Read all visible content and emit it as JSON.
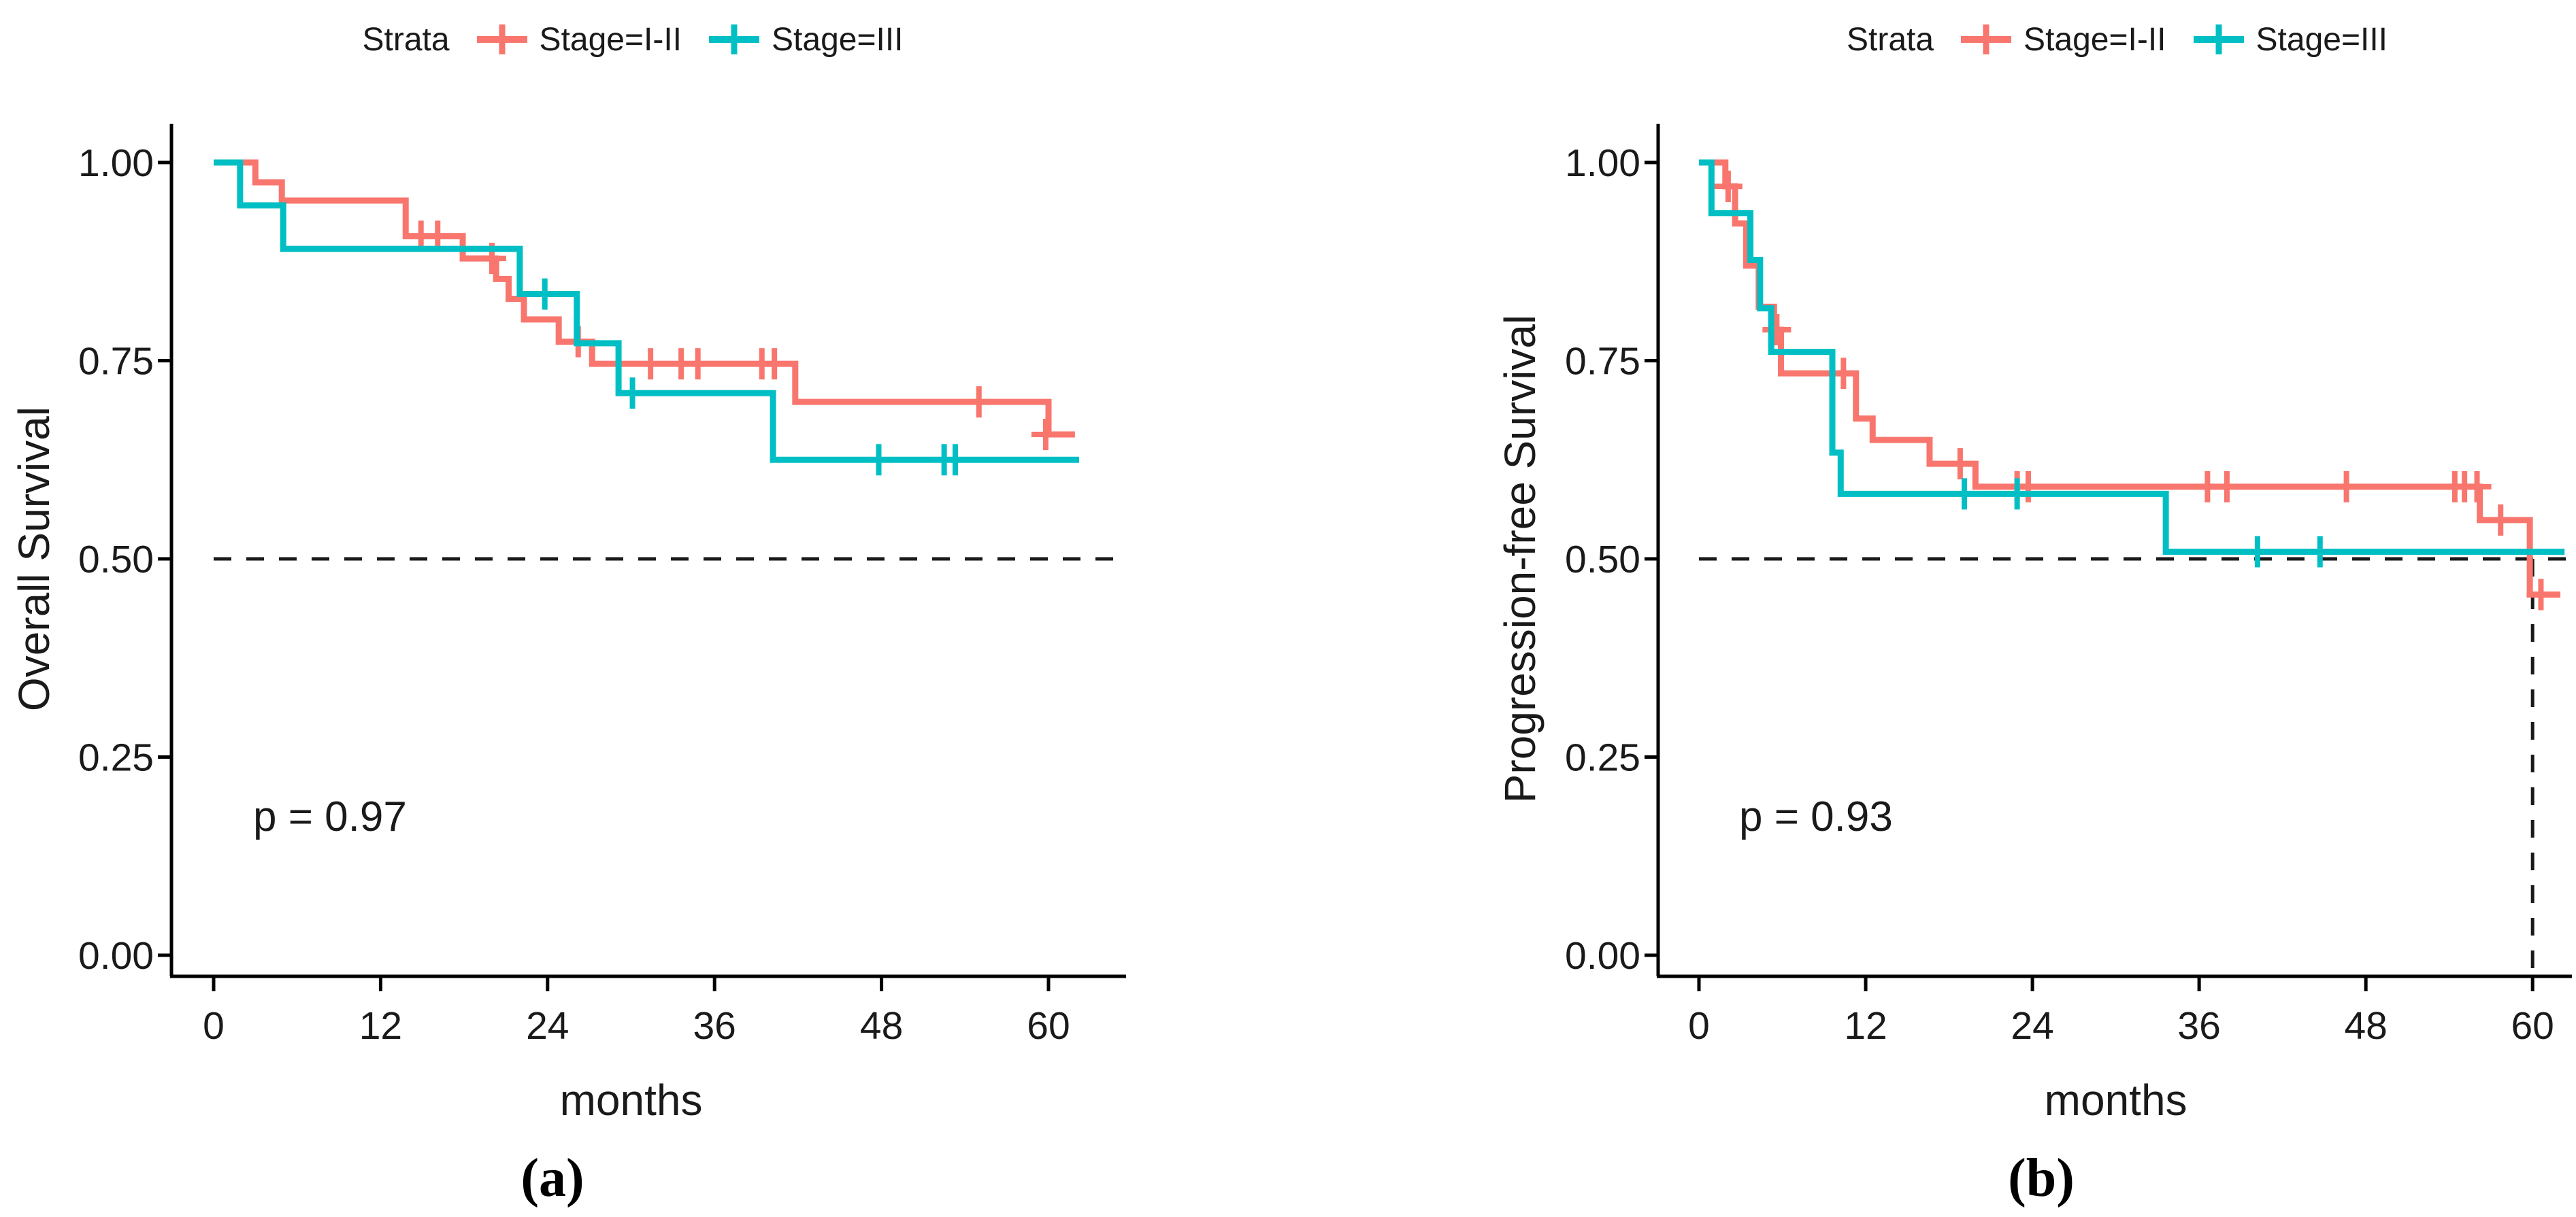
{
  "figure": {
    "background": "#ffffff",
    "legend_title": "Strata",
    "series": [
      {
        "name": "Stage=I-II",
        "color": "#F8766D"
      },
      {
        "name": "Stage=III",
        "color": "#00BFC4"
      }
    ],
    "dashed_color": "#1a1a1a",
    "axis_color": "#000000",
    "text_color": "#1a1a1a"
  },
  "chart_data": [
    {
      "type": "line",
      "subtype": "kaplan-meier-step",
      "panel": "a",
      "caption": "(a)",
      "xlabel": "months",
      "ylabel": "Overall Survival",
      "pvalue": "p = 0.97",
      "xlim": [
        0,
        63.5
      ],
      "ylim": [
        0,
        1.0
      ],
      "xticks": [
        0,
        12,
        24,
        36,
        48,
        60
      ],
      "ytick_labels": [
        "1.00",
        "0.75",
        "0.50",
        "0.25",
        "0.00"
      ],
      "yticks": [
        1.0,
        0.75,
        0.5,
        0.25,
        0.0
      ],
      "grid": false,
      "legend_position": "top",
      "median_line": {
        "horizontal_y": 0.5,
        "vertical_x": null
      },
      "series": [
        {
          "name": "Stage=I-II",
          "color": "#F8766D",
          "end_x": 61.9,
          "steps": [
            [
              0,
              1.0
            ],
            [
              3.0,
              0.975
            ],
            [
              4.9,
              0.952
            ],
            [
              13.8,
              0.907
            ],
            [
              17.9,
              0.879
            ],
            [
              20.3,
              0.853
            ],
            [
              21.2,
              0.828
            ],
            [
              22.3,
              0.802
            ],
            [
              24.8,
              0.774
            ],
            [
              27.2,
              0.746
            ],
            [
              41.8,
              0.698
            ],
            [
              60.0,
              0.657
            ]
          ],
          "censors": [
            [
              14.9,
              0.907
            ],
            [
              16.1,
              0.907
            ],
            [
              20.0,
              0.879
            ],
            [
              26.2,
              0.774
            ],
            [
              31.4,
              0.746
            ],
            [
              33.6,
              0.746
            ],
            [
              34.8,
              0.746
            ],
            [
              39.4,
              0.746
            ],
            [
              40.3,
              0.746
            ],
            [
              55.0,
              0.698
            ],
            [
              59.8,
              0.657
            ]
          ]
        },
        {
          "name": "Stage=III",
          "color": "#00BFC4",
          "end_x": 62.2,
          "steps": [
            [
              0,
              1.0
            ],
            [
              1.9,
              0.946
            ],
            [
              5.0,
              0.891
            ],
            [
              22.0,
              0.834
            ],
            [
              26.1,
              0.772
            ],
            [
              29.1,
              0.709
            ],
            [
              40.2,
              0.625
            ]
          ],
          "censors": [
            [
              23.8,
              0.834
            ],
            [
              30.1,
              0.709
            ],
            [
              47.8,
              0.625
            ],
            [
              52.5,
              0.625
            ],
            [
              53.3,
              0.625
            ]
          ]
        }
      ]
    },
    {
      "type": "line",
      "subtype": "kaplan-meier-step",
      "panel": "b",
      "caption": "(b)",
      "xlabel": "months",
      "ylabel": "Progression-free Survival",
      "pvalue": "p = 0.93",
      "xlim": [
        0,
        63.5
      ],
      "ylim": [
        0,
        1.0
      ],
      "xticks": [
        0,
        12,
        24,
        36,
        48,
        60
      ],
      "ytick_labels": [
        "1.00",
        "0.75",
        "0.50",
        "0.25",
        "0.00"
      ],
      "yticks": [
        1.0,
        0.75,
        0.5,
        0.25,
        0.0
      ],
      "grid": false,
      "legend_position": "top",
      "median_line": {
        "horizontal_y": 0.5,
        "vertical_x": 60
      },
      "series": [
        {
          "name": "Stage=I-II",
          "color": "#F8766D",
          "end_x": 62.0,
          "steps": [
            [
              0,
              1.0
            ],
            [
              1.9,
              0.97
            ],
            [
              2.6,
              0.923
            ],
            [
              3.4,
              0.87
            ],
            [
              4.3,
              0.818
            ],
            [
              5.4,
              0.789
            ],
            [
              5.9,
              0.734
            ],
            [
              11.3,
              0.677
            ],
            [
              12.5,
              0.65
            ],
            [
              16.6,
              0.62
            ],
            [
              19.9,
              0.591
            ],
            [
              56.2,
              0.549
            ],
            [
              59.8,
              0.455
            ]
          ],
          "censors": [
            [
              2.1,
              0.97
            ],
            [
              5.6,
              0.789
            ],
            [
              10.4,
              0.734
            ],
            [
              18.8,
              0.62
            ],
            [
              22.9,
              0.591
            ],
            [
              23.7,
              0.591
            ],
            [
              36.6,
              0.591
            ],
            [
              38.0,
              0.591
            ],
            [
              46.6,
              0.591
            ],
            [
              54.4,
              0.591
            ],
            [
              55.1,
              0.591
            ],
            [
              56.0,
              0.591
            ],
            [
              57.7,
              0.549
            ],
            [
              60.6,
              0.455
            ]
          ]
        },
        {
          "name": "Stage=III",
          "color": "#00BFC4",
          "end_x": 62.3,
          "steps": [
            [
              0,
              1.0
            ],
            [
              0.9,
              0.936
            ],
            [
              3.7,
              0.877
            ],
            [
              4.4,
              0.816
            ],
            [
              5.2,
              0.761
            ],
            [
              9.6,
              0.634
            ],
            [
              10.2,
              0.582
            ],
            [
              33.6,
              0.509
            ]
          ],
          "censors": [
            [
              19.1,
              0.582
            ],
            [
              22.9,
              0.582
            ],
            [
              40.2,
              0.509
            ],
            [
              44.7,
              0.509
            ]
          ]
        }
      ]
    }
  ]
}
